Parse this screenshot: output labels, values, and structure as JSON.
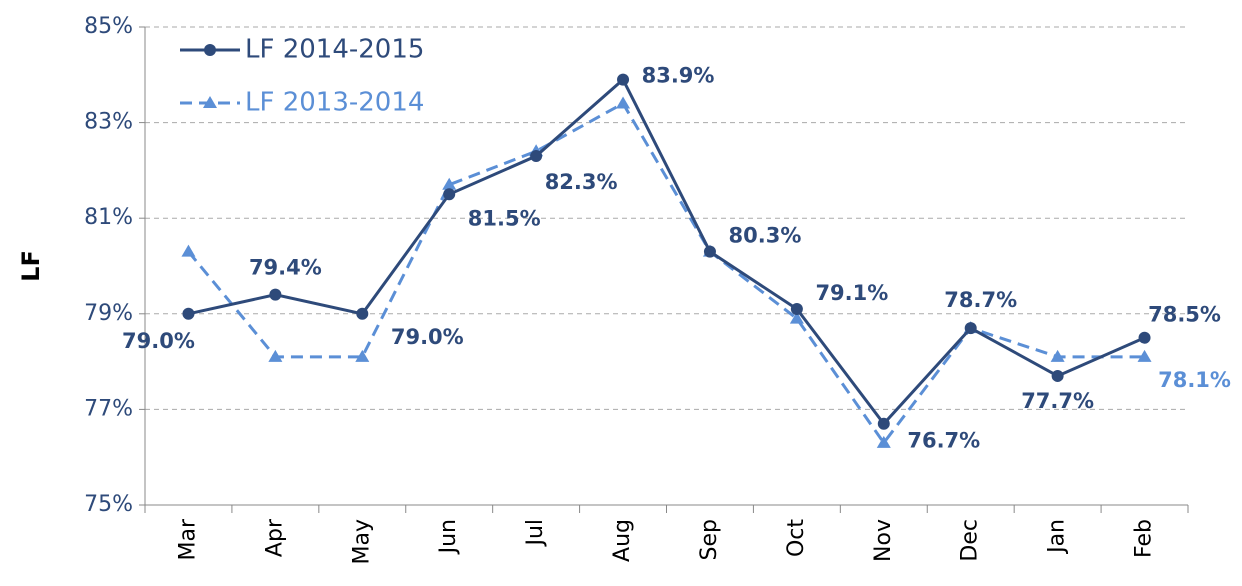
{
  "chart_data": {
    "type": "line",
    "ylabel": "LF",
    "categories": [
      "Mar",
      "Apr",
      "May",
      "Jun",
      "Jul",
      "Aug",
      "Sep",
      "Oct",
      "Nov",
      "Dec",
      "Jan",
      "Feb"
    ],
    "series": [
      {
        "name": "LF 2014-2015",
        "color": "#2e4a7a",
        "dash": false,
        "marker": "circle",
        "values": [
          79.0,
          79.4,
          79.0,
          81.5,
          82.3,
          83.9,
          80.3,
          79.1,
          76.7,
          78.7,
          77.7,
          78.5
        ],
        "value_labels": [
          "79.0%",
          "79.4%",
          "79.0%",
          "81.5%",
          "82.3%",
          "83.9%",
          "80.3%",
          "79.1%",
          "76.7%",
          "78.7%",
          "77.7%",
          "78.5%"
        ]
      },
      {
        "name": "LF 2013-2014",
        "color": "#5b8fd6",
        "dash": true,
        "marker": "triangle",
        "values": [
          80.3,
          78.1,
          78.1,
          81.7,
          82.4,
          83.4,
          80.3,
          78.9,
          76.3,
          78.7,
          78.1,
          78.1
        ],
        "value_labels": [
          null,
          null,
          null,
          null,
          null,
          null,
          null,
          null,
          null,
          null,
          null,
          "78.1%"
        ]
      }
    ],
    "ylim": [
      75,
      85
    ],
    "yticks": [
      {
        "value": 75,
        "label": "75%"
      },
      {
        "value": 77,
        "label": "77%"
      },
      {
        "value": 79,
        "label": "79%"
      },
      {
        "value": 81,
        "label": "81%"
      },
      {
        "value": 83,
        "label": "83%"
      },
      {
        "value": 85,
        "label": "85%"
      }
    ],
    "grid": true,
    "legend": "top-left"
  }
}
